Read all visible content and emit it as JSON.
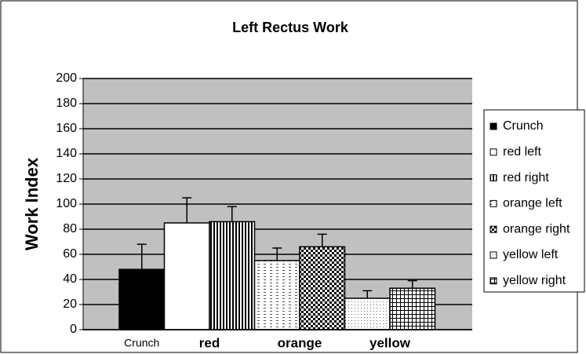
{
  "chart_data": {
    "type": "bar",
    "title": "Left Rectus Work",
    "y_label": "Work Index",
    "categories": [
      "Crunch",
      "red",
      "orange",
      "yellow"
    ],
    "series": [
      {
        "name": "Crunch",
        "color": "#000000",
        "values": [
          48,
          null,
          null,
          null
        ],
        "errors": [
          20,
          null,
          null,
          null
        ]
      },
      {
        "name": "red left",
        "color": "#ffffff",
        "values": [
          null,
          85,
          null,
          null
        ],
        "errors": [
          null,
          20,
          null,
          null
        ]
      },
      {
        "name": "red right",
        "color": "#ffffff",
        "values": [
          null,
          86,
          null,
          null
        ],
        "errors": [
          null,
          12,
          null,
          null
        ]
      },
      {
        "name": "orange left",
        "color": "#ffffff",
        "values": [
          null,
          null,
          55,
          null
        ],
        "errors": [
          null,
          null,
          10,
          null
        ]
      },
      {
        "name": "orange right",
        "color": "#ffffff",
        "values": [
          null,
          null,
          66,
          null
        ],
        "errors": [
          null,
          null,
          10,
          null
        ]
      },
      {
        "name": "yellow left",
        "color": "#ffffff",
        "values": [
          null,
          null,
          null,
          25
        ],
        "errors": [
          null,
          null,
          null,
          6
        ]
      },
      {
        "name": "yellow right",
        "color": "#ffffff",
        "values": [
          null,
          null,
          null,
          33
        ],
        "errors": [
          null,
          null,
          null,
          6
        ]
      }
    ],
    "ylim": [
      0,
      200
    ],
    "yticks": [
      0,
      20,
      40,
      60,
      80,
      100,
      120,
      140,
      160,
      180,
      200
    ],
    "grid": true,
    "legend": "right"
  }
}
